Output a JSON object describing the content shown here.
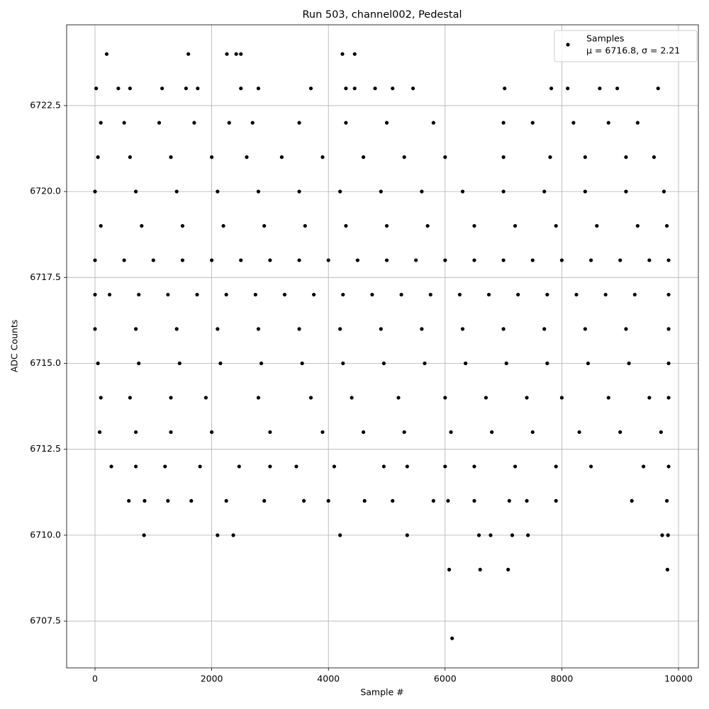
{
  "chart_data": {
    "type": "scatter",
    "title": "Run 503, channel002, Pedestal",
    "xlabel": "Sample #",
    "ylabel": "ADC Counts",
    "xlim": [
      -486,
      10340
    ],
    "ylim": [
      6706.14,
      6724.85
    ],
    "xticks": [
      0,
      2000,
      4000,
      6000,
      8000,
      10000
    ],
    "yticks": [
      6707.5,
      {
        "value": 6710,
        "label": "6710.0"
      },
      6712.5,
      {
        "value": 6715,
        "label": "6715.0"
      },
      6717.5,
      {
        "value": 6720,
        "label": "6720.0"
      },
      6722.5
    ],
    "grid": true,
    "legend": "upper right",
    "legend_note": "μ = 6716.8, σ = 2.21",
    "series": [
      {
        "name": "Samples",
        "color": "#000000",
        "x": [
          200,
          1600,
          2260,
          2420,
          2500,
          4240,
          4450,
          20,
          400,
          600,
          1150,
          1560,
          1760,
          2500,
          2800,
          3700,
          4300,
          4450,
          4800,
          5100,
          5450,
          7020,
          7820,
          8100,
          8650,
          8950,
          9650,
          100,
          500,
          1100,
          1700,
          2300,
          2700,
          3500,
          4300,
          5000,
          5800,
          7000,
          7500,
          8200,
          8800,
          9300,
          50,
          600,
          1300,
          2000,
          2600,
          3200,
          3900,
          4600,
          5300,
          6000,
          7000,
          7800,
          8400,
          9100,
          9580,
          0,
          700,
          1400,
          2100,
          2800,
          3500,
          4200,
          4900,
          5600,
          6300,
          7000,
          7700,
          8400,
          9100,
          9750,
          100,
          800,
          1500,
          2200,
          2900,
          3600,
          4300,
          5000,
          5700,
          6500,
          7200,
          7900,
          8600,
          9300,
          9800,
          0,
          500,
          1000,
          1500,
          2000,
          2500,
          3000,
          3500,
          4000,
          4500,
          5000,
          5500,
          6000,
          6500,
          7000,
          7500,
          8000,
          8500,
          9000,
          9500,
          9830,
          0,
          250,
          750,
          1250,
          1750,
          2250,
          2750,
          3250,
          3750,
          4250,
          4750,
          5250,
          5750,
          6250,
          6750,
          7250,
          7750,
          8250,
          8750,
          9250,
          9830,
          0,
          700,
          1400,
          2100,
          2800,
          3500,
          4200,
          4900,
          5600,
          6300,
          7000,
          7700,
          8400,
          9100,
          9830,
          50,
          750,
          1450,
          2150,
          2850,
          3550,
          4250,
          4950,
          5650,
          6350,
          7050,
          7750,
          8450,
          9150,
          9830,
          100,
          600,
          1300,
          1900,
          2800,
          3700,
          4400,
          5200,
          6000,
          6700,
          7400,
          8000,
          8800,
          9500,
          9830,
          80,
          700,
          1300,
          2000,
          3000,
          3900,
          4600,
          5300,
          6100,
          6800,
          7500,
          8300,
          9000,
          9700,
          280,
          700,
          1200,
          1800,
          2470,
          3000,
          3450,
          4100,
          4950,
          5350,
          6000,
          6500,
          7200,
          7900,
          8500,
          9400,
          9830,
          580,
          850,
          1250,
          1650,
          2250,
          2900,
          3580,
          4000,
          4620,
          5100,
          5800,
          6050,
          6500,
          7100,
          7400,
          7900,
          9200,
          9800,
          840,
          2100,
          2370,
          4200,
          5350,
          6580,
          6780,
          7150,
          7420,
          9720,
          9820,
          6070,
          6600,
          7080,
          9810,
          6120
        ],
        "values": [
          6724,
          6724,
          6724,
          6724,
          6724,
          6724,
          6724,
          6723,
          6723,
          6723,
          6723,
          6723,
          6723,
          6723,
          6723,
          6723,
          6723,
          6723,
          6723,
          6723,
          6723,
          6723,
          6723,
          6723,
          6723,
          6723,
          6723,
          6722,
          6722,
          6722,
          6722,
          6722,
          6722,
          6722,
          6722,
          6722,
          6722,
          6722,
          6722,
          6722,
          6722,
          6722,
          6721,
          6721,
          6721,
          6721,
          6721,
          6721,
          6721,
          6721,
          6721,
          6721,
          6721,
          6721,
          6721,
          6721,
          6721,
          6720,
          6720,
          6720,
          6720,
          6720,
          6720,
          6720,
          6720,
          6720,
          6720,
          6720,
          6720,
          6720,
          6720,
          6720,
          6719,
          6719,
          6719,
          6719,
          6719,
          6719,
          6719,
          6719,
          6719,
          6719,
          6719,
          6719,
          6719,
          6719,
          6719,
          6718,
          6718,
          6718,
          6718,
          6718,
          6718,
          6718,
          6718,
          6718,
          6718,
          6718,
          6718,
          6718,
          6718,
          6718,
          6718,
          6718,
          6718,
          6718,
          6718,
          6718,
          6717,
          6717,
          6717,
          6717,
          6717,
          6717,
          6717,
          6717,
          6717,
          6717,
          6717,
          6717,
          6717,
          6717,
          6717,
          6717,
          6717,
          6717,
          6717,
          6717,
          6717,
          6716,
          6716,
          6716,
          6716,
          6716,
          6716,
          6716,
          6716,
          6716,
          6716,
          6716,
          6716,
          6716,
          6716,
          6716,
          6715,
          6715,
          6715,
          6715,
          6715,
          6715,
          6715,
          6715,
          6715,
          6715,
          6715,
          6715,
          6715,
          6715,
          6715,
          6714,
          6714,
          6714,
          6714,
          6714,
          6714,
          6714,
          6714,
          6714,
          6714,
          6714,
          6714,
          6714,
          6714,
          6714,
          6713,
          6713,
          6713,
          6713,
          6713,
          6713,
          6713,
          6713,
          6713,
          6713,
          6713,
          6713,
          6713,
          6713,
          6712,
          6712,
          6712,
          6712,
          6712,
          6712,
          6712,
          6712,
          6712,
          6712,
          6712,
          6712,
          6712,
          6712,
          6712,
          6712,
          6712,
          6711,
          6711,
          6711,
          6711,
          6711,
          6711,
          6711,
          6711,
          6711,
          6711,
          6711,
          6711,
          6711,
          6711,
          6711,
          6711,
          6711,
          6711,
          6710,
          6710,
          6710,
          6710,
          6710,
          6710,
          6710,
          6710,
          6710,
          6710,
          6710,
          6709,
          6709,
          6709,
          6709,
          6707
        ]
      }
    ]
  }
}
